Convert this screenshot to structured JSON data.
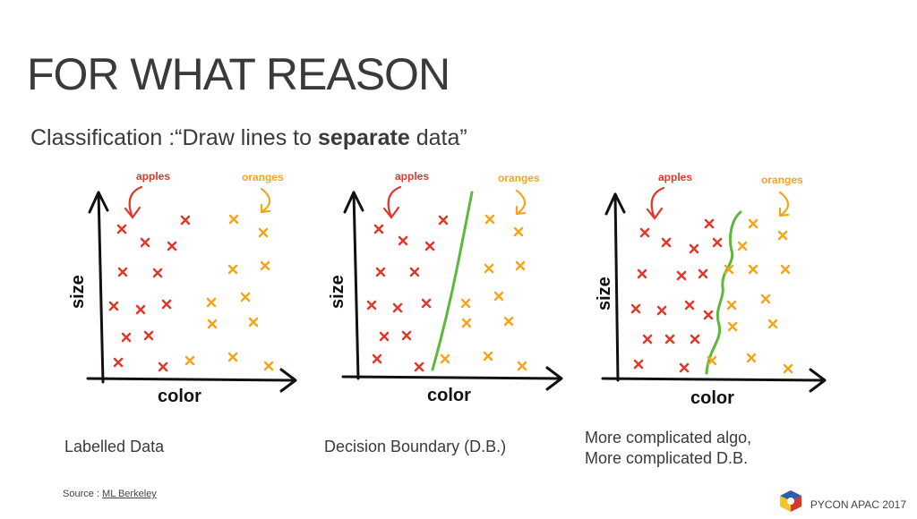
{
  "slide": {
    "title": "FOR WHAT REASON",
    "subtitle_prefix": "Classification :“Draw lines to ",
    "subtitle_bold": "separate",
    "subtitle_suffix": " data”"
  },
  "panels": [
    {
      "label_apples": "apples",
      "label_oranges": "oranges",
      "axis_y": "size",
      "axis_x": "color",
      "caption_lines": [
        "Labelled Data"
      ]
    },
    {
      "label_apples": "apples",
      "label_oranges": "oranges",
      "axis_y": "size",
      "axis_x": "color",
      "caption_lines": [
        "Decision Boundary (D.B.)"
      ]
    },
    {
      "label_apples": "apples",
      "label_oranges": "oranges",
      "axis_y": "size",
      "axis_x": "color",
      "caption_lines": [
        "More complicated algo,",
        "More complicated D.B."
      ]
    }
  ],
  "footer": {
    "source_prefix": "Source : ",
    "source_link": "ML Berkeley",
    "conference": "PYCON APAC 2017"
  },
  "colors": {
    "apples": "#e0382b",
    "oranges": "#f5a51c",
    "boundary": "#5cb83a",
    "axis": "#111111",
    "text": "#3a3a3a"
  }
}
